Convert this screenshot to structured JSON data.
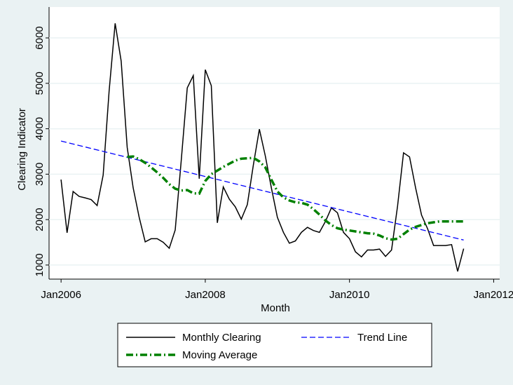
{
  "chart_data": {
    "type": "line",
    "xlabel": "Month",
    "ylabel": "Clearing Indicator",
    "x": [
      "2006-01",
      "2006-02",
      "2006-03",
      "2006-04",
      "2006-05",
      "2006-06",
      "2006-07",
      "2006-08",
      "2006-09",
      "2006-10",
      "2006-11",
      "2006-12",
      "2007-01",
      "2007-02",
      "2007-03",
      "2007-04",
      "2007-05",
      "2007-06",
      "2007-07",
      "2007-08",
      "2007-09",
      "2007-10",
      "2007-11",
      "2007-12",
      "2008-01",
      "2008-02",
      "2008-03",
      "2008-04",
      "2008-05",
      "2008-06",
      "2008-07",
      "2008-08",
      "2008-09",
      "2008-10",
      "2008-11",
      "2008-12",
      "2009-01",
      "2009-02",
      "2009-03",
      "2009-04",
      "2009-05",
      "2009-06",
      "2009-07",
      "2009-08",
      "2009-09",
      "2009-10",
      "2009-11",
      "2009-12",
      "2010-01",
      "2010-02",
      "2010-03",
      "2010-04",
      "2010-05",
      "2010-06",
      "2010-07",
      "2010-08",
      "2010-09",
      "2010-10",
      "2010-11",
      "2010-12",
      "2011-01",
      "2011-02",
      "2011-03",
      "2011-04",
      "2011-05",
      "2011-06",
      "2011-07",
      "2011-08"
    ],
    "series": [
      {
        "name": "Monthly Clearing",
        "color": "#000000",
        "dash": "solid",
        "values": [
          2880,
          1710,
          2620,
          2510,
          2480,
          2440,
          2310,
          2980,
          4830,
          6320,
          5490,
          3590,
          2700,
          2050,
          1510,
          1580,
          1580,
          1500,
          1370,
          1770,
          3300,
          4900,
          5170,
          2900,
          5300,
          4950,
          1930,
          2720,
          2450,
          2280,
          2010,
          2330,
          3200,
          3990,
          3400,
          2700,
          2050,
          1720,
          1480,
          1530,
          1720,
          1830,
          1760,
          1720,
          1960,
          2260,
          2150,
          1720,
          1580,
          1290,
          1180,
          1330,
          1330,
          1350,
          1190,
          1330,
          2300,
          3470,
          3380,
          2700,
          2100,
          1800,
          1430,
          1430,
          1430,
          1450,
          860,
          1360
        ]
      },
      {
        "name": "Trend Line",
        "color": "#0000ff",
        "dash": "dashed",
        "x": [
          "2006-01",
          "2011-08"
        ],
        "values": [
          3730,
          1550
        ]
      },
      {
        "name": "Moving Average",
        "color": "#008000",
        "dash": "dashdot",
        "values": [
          null,
          null,
          null,
          null,
          null,
          null,
          null,
          null,
          null,
          null,
          null,
          3380,
          3390,
          3330,
          3250,
          3150,
          3040,
          2920,
          2780,
          2680,
          2640,
          2650,
          2580,
          2570,
          2850,
          3000,
          3080,
          3160,
          3230,
          3300,
          3340,
          3350,
          3360,
          3280,
          3150,
          2880,
          2620,
          2490,
          2420,
          2380,
          2370,
          2330,
          2230,
          2110,
          1980,
          1880,
          1810,
          1780,
          1760,
          1740,
          1720,
          1700,
          1690,
          1650,
          1590,
          1560,
          1580,
          1680,
          1780,
          1840,
          1880,
          1920,
          1940,
          1960,
          1960,
          1960,
          1960,
          1960
        ]
      }
    ],
    "xlim": [
      "2005-11",
      "2012-02"
    ],
    "xticks": [
      {
        "value": "2006-01",
        "label": "Jan2006"
      },
      {
        "value": "2008-01",
        "label": "Jan2008"
      },
      {
        "value": "2010-01",
        "label": "Jan2010"
      },
      {
        "value": "2012-01",
        "label": "Jan2012"
      }
    ],
    "ylim": [
      690,
      6680
    ],
    "yticks": [
      1000,
      2000,
      3000,
      4000,
      5000,
      6000
    ],
    "grid": true,
    "legend": "bottom"
  }
}
